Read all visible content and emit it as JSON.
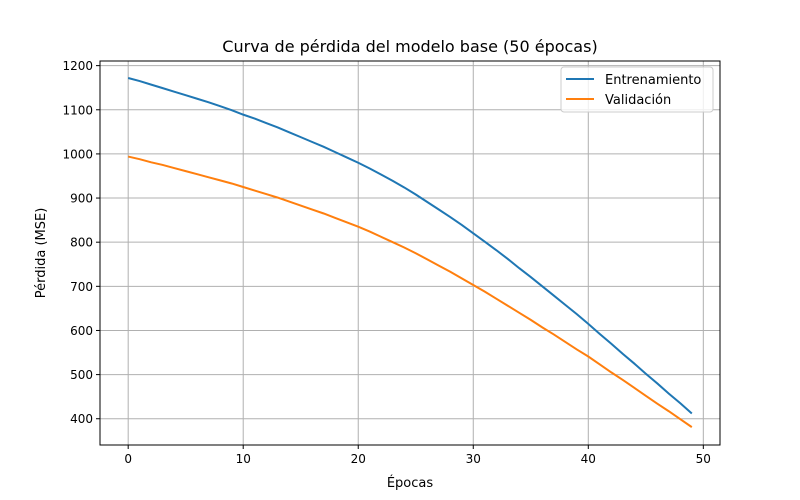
{
  "chart_data": {
    "type": "line",
    "title": "Curva de pérdida del modelo base (50 épocas)",
    "xlabel": "Épocas",
    "ylabel": "Pérdida (MSE)",
    "xlim": [
      -2.45,
      51.45
    ],
    "ylim": [
      340.5,
      1210.5
    ],
    "xticks": [
      0,
      10,
      20,
      30,
      40,
      50
    ],
    "yticks": [
      400,
      500,
      600,
      700,
      800,
      900,
      1000,
      1100,
      1200
    ],
    "grid": true,
    "legend_position": "top-right",
    "x": [
      0,
      1,
      2,
      3,
      4,
      5,
      6,
      7,
      8,
      9,
      10,
      11,
      12,
      13,
      14,
      15,
      16,
      17,
      18,
      19,
      20,
      21,
      22,
      23,
      24,
      25,
      26,
      27,
      28,
      29,
      30,
      31,
      32,
      33,
      34,
      35,
      36,
      37,
      38,
      39,
      40,
      41,
      42,
      43,
      44,
      45,
      46,
      47,
      48,
      49
    ],
    "series": [
      {
        "name": "Entrenamiento",
        "color": "#1f77b4",
        "values": [
          1172,
          1165,
          1157,
          1149,
          1141,
          1133,
          1125,
          1117,
          1108,
          1099,
          1089,
          1080,
          1070,
          1060,
          1049,
          1038,
          1027,
          1016,
          1004,
          992,
          980,
          967,
          953,
          939,
          924,
          908,
          891,
          874,
          857,
          839,
          820,
          801,
          782,
          762,
          741,
          721,
          700,
          679,
          658,
          637,
          615,
          592,
          570,
          547,
          525,
          502,
          480,
          457,
          435,
          412
        ]
      },
      {
        "name": "Validación",
        "color": "#ff7f0e",
        "values": [
          994,
          988,
          981,
          975,
          968,
          961,
          954,
          947,
          940,
          933,
          925,
          917,
          909,
          901,
          892,
          883,
          874,
          865,
          855,
          845,
          835,
          824,
          812,
          800,
          788,
          775,
          761,
          747,
          733,
          718,
          703,
          688,
          672,
          656,
          640,
          624,
          607,
          591,
          574,
          557,
          541,
          523,
          505,
          488,
          470,
          452,
          434,
          417,
          399,
          381
        ]
      }
    ]
  }
}
